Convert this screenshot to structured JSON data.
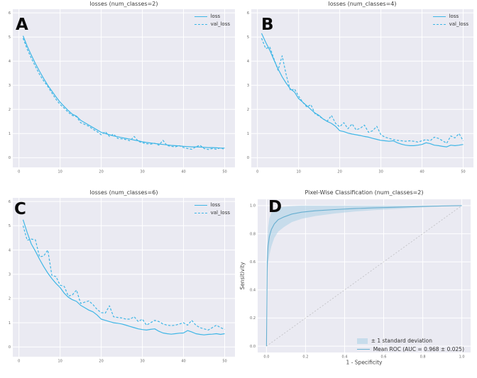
{
  "style": {
    "figure_background": "#ffffff",
    "axes_background": "#eaeaf2",
    "grid_color": "#ffffff",
    "tick_color": "#666666",
    "title_color": "#3a3a3a",
    "loss_line_color": "#3fb6e6",
    "roc_line_color": "#66aed0",
    "roc_band_color": "#a9d0e6",
    "chance_line_color": "#999999"
  },
  "chart_data": [
    {
      "type": "line",
      "panel_label": "A",
      "title": "losses (num_classes=2)",
      "xlim": [
        -1.5,
        52.5
      ],
      "ylim": [
        -0.4,
        6.15
      ],
      "xticks": [
        0,
        10,
        20,
        30,
        40,
        50
      ],
      "yticks": [
        0,
        1,
        2,
        3,
        4,
        5,
        6
      ],
      "grid": true,
      "legend_position": "upper right",
      "series": [
        {
          "key": "loss",
          "name": "loss",
          "style": "solid",
          "color": "#3fb6e6",
          "x_start": 1,
          "values": [
            5.05,
            4.62,
            4.25,
            3.9,
            3.58,
            3.28,
            3.0,
            2.76,
            2.52,
            2.3,
            2.12,
            1.95,
            1.8,
            1.72,
            1.55,
            1.45,
            1.35,
            1.25,
            1.15,
            1.05,
            1.0,
            0.95,
            0.9,
            0.87,
            0.83,
            0.8,
            0.77,
            0.73,
            0.7,
            0.66,
            0.63,
            0.61,
            0.59,
            0.57,
            0.55,
            0.53,
            0.51,
            0.5,
            0.49,
            0.47,
            0.46,
            0.45,
            0.45,
            0.44,
            0.43,
            0.42,
            0.42,
            0.41,
            0.4,
            0.4
          ]
        },
        {
          "key": "val_loss",
          "name": "val_loss",
          "style": "dashed",
          "color": "#3fb6e6",
          "x_start": 1,
          "values": [
            4.95,
            4.5,
            4.12,
            3.78,
            3.45,
            3.18,
            2.95,
            2.68,
            2.42,
            2.2,
            2.05,
            1.88,
            1.75,
            1.7,
            1.45,
            1.38,
            1.3,
            1.18,
            1.08,
            0.95,
            1.08,
            0.88,
            0.98,
            0.8,
            0.78,
            0.75,
            0.7,
            0.88,
            0.68,
            0.62,
            0.58,
            0.56,
            0.6,
            0.52,
            0.72,
            0.5,
            0.47,
            0.45,
            0.5,
            0.42,
            0.38,
            0.35,
            0.45,
            0.52,
            0.38,
            0.34,
            0.38,
            0.35,
            0.42,
            0.33
          ]
        }
      ]
    },
    {
      "type": "line",
      "panel_label": "B",
      "title": "losses (num_classes=4)",
      "xlim": [
        -1.5,
        52.5
      ],
      "ylim": [
        -0.4,
        6.15
      ],
      "xticks": [
        0,
        10,
        20,
        30,
        40,
        50
      ],
      "yticks": [
        0,
        1,
        2,
        3,
        4,
        5,
        6
      ],
      "grid": true,
      "legend_position": "upper right",
      "series": [
        {
          "key": "loss",
          "name": "loss",
          "style": "solid",
          "color": "#3fb6e6",
          "x_start": 1,
          "values": [
            5.15,
            4.78,
            4.45,
            4.05,
            3.68,
            3.35,
            3.08,
            2.85,
            2.72,
            2.45,
            2.3,
            2.15,
            2.0,
            1.85,
            1.75,
            1.6,
            1.5,
            1.42,
            1.3,
            1.12,
            1.08,
            1.02,
            0.98,
            0.95,
            0.92,
            0.88,
            0.85,
            0.8,
            0.76,
            0.72,
            0.7,
            0.68,
            0.7,
            0.62,
            0.56,
            0.52,
            0.5,
            0.5,
            0.52,
            0.55,
            0.62,
            0.58,
            0.52,
            0.5,
            0.47,
            0.45,
            0.52,
            0.5,
            0.52,
            0.55
          ]
        },
        {
          "key": "val_loss",
          "name": "val_loss",
          "style": "dashed",
          "color": "#3fb6e6",
          "x_start": 1,
          "values": [
            4.95,
            4.52,
            4.58,
            4.1,
            3.62,
            4.22,
            3.42,
            2.78,
            2.85,
            2.55,
            2.3,
            2.1,
            2.2,
            1.82,
            1.72,
            1.6,
            1.52,
            1.75,
            1.42,
            1.28,
            1.45,
            1.2,
            1.4,
            1.15,
            1.22,
            1.35,
            1.05,
            1.12,
            1.3,
            0.95,
            0.85,
            0.8,
            0.75,
            0.72,
            0.7,
            0.68,
            0.7,
            0.68,
            0.65,
            0.7,
            0.75,
            0.7,
            0.85,
            0.8,
            0.7,
            0.6,
            0.9,
            0.82,
            1.0,
            0.7
          ]
        }
      ]
    },
    {
      "type": "line",
      "panel_label": "C",
      "title": "losses (num_classes=6)",
      "xlim": [
        -1.5,
        52.5
      ],
      "ylim": [
        -0.4,
        6.15
      ],
      "xticks": [
        0,
        10,
        20,
        30,
        40,
        50
      ],
      "yticks": [
        0,
        1,
        2,
        3,
        4,
        5,
        6
      ],
      "grid": true,
      "legend_position": "upper right",
      "series": [
        {
          "key": "loss",
          "name": "loss",
          "style": "solid",
          "color": "#3fb6e6",
          "x_start": 1,
          "values": [
            5.25,
            4.72,
            4.25,
            3.95,
            3.62,
            3.32,
            3.05,
            2.82,
            2.62,
            2.45,
            2.22,
            2.05,
            1.95,
            1.88,
            1.72,
            1.62,
            1.52,
            1.45,
            1.32,
            1.15,
            1.1,
            1.05,
            1.0,
            0.98,
            0.95,
            0.9,
            0.85,
            0.8,
            0.75,
            0.72,
            0.7,
            0.73,
            0.75,
            0.65,
            0.58,
            0.55,
            0.53,
            0.55,
            0.57,
            0.58,
            0.68,
            0.62,
            0.55,
            0.52,
            0.5,
            0.52,
            0.53,
            0.55,
            0.52,
            0.55
          ]
        },
        {
          "key": "val_loss",
          "name": "val_loss",
          "style": "dashed",
          "color": "#3fb6e6",
          "x_start": 1,
          "values": [
            5.0,
            4.4,
            4.45,
            4.42,
            3.72,
            3.75,
            4.0,
            2.95,
            2.9,
            2.55,
            2.5,
            2.1,
            2.15,
            2.35,
            1.8,
            1.85,
            1.9,
            1.75,
            1.55,
            1.42,
            1.4,
            1.7,
            1.25,
            1.22,
            1.2,
            1.15,
            1.15,
            1.25,
            1.05,
            1.15,
            0.9,
            1.0,
            1.1,
            1.05,
            0.95,
            0.9,
            0.88,
            0.9,
            0.95,
            1.0,
            0.9,
            1.1,
            0.9,
            0.8,
            0.75,
            0.7,
            0.8,
            0.9,
            0.8,
            0.73
          ]
        }
      ]
    },
    {
      "type": "line",
      "panel_label": "D",
      "title": "Pixel-Wise Classification (num_classes=2)",
      "xlabel": "1 - Specificity",
      "ylabel": "Sensitivity",
      "xlim": [
        -0.045,
        1.045
      ],
      "ylim": [
        -0.045,
        1.045
      ],
      "xticks": [
        0,
        0.2,
        0.4,
        0.6,
        0.8,
        1.0
      ],
      "yticks": [
        0,
        0.2,
        0.4,
        0.6,
        0.8,
        1.0
      ],
      "xtick_labels": [
        "0.0",
        "0.2",
        "0.4",
        "0.6",
        "0.8",
        "1.0"
      ],
      "ytick_labels": [
        "0.0",
        "0.2",
        "0.4",
        "0.6",
        "0.8",
        "1.0"
      ],
      "grid": true,
      "legend_position": "lower right",
      "auc_text": "0.968 ± 0.025",
      "series": [
        {
          "key": "std_band",
          "name": "± 1 standard deviation",
          "style": "band",
          "color": "#a9d0e6",
          "x": [
            0,
            0.004,
            0.008,
            0.015,
            0.025,
            0.04,
            0.06,
            0.09,
            0.13,
            0.18,
            0.25,
            0.35,
            0.45,
            0.55,
            0.65,
            0.75,
            0.85,
            1.0
          ],
          "upper": [
            0,
            0.72,
            0.84,
            0.91,
            0.95,
            0.97,
            0.985,
            0.992,
            0.997,
            1,
            1,
            1,
            1,
            1,
            1,
            1,
            1,
            1
          ],
          "lower": [
            0,
            0.48,
            0.58,
            0.65,
            0.71,
            0.77,
            0.815,
            0.848,
            0.883,
            0.906,
            0.926,
            0.944,
            0.958,
            0.968,
            0.976,
            0.984,
            0.992,
            1.0
          ]
        },
        {
          "key": "chance",
          "name": "chance-diagonal",
          "style": "chance",
          "color": "#999999",
          "legend": false,
          "x": [
            0,
            1
          ],
          "y": [
            0,
            1
          ]
        },
        {
          "key": "mean_roc",
          "name": "Mean ROC (AUC = 0.968 ± 0.025)",
          "style": "solid",
          "color": "#66aed0",
          "width": 1.1,
          "x": [
            0,
            0.004,
            0.008,
            0.015,
            0.025,
            0.04,
            0.06,
            0.09,
            0.13,
            0.18,
            0.25,
            0.35,
            0.45,
            0.55,
            0.65,
            0.75,
            0.85,
            1.0
          ],
          "y": [
            0,
            0.6,
            0.71,
            0.78,
            0.83,
            0.87,
            0.9,
            0.92,
            0.94,
            0.953,
            0.963,
            0.972,
            0.979,
            0.984,
            0.988,
            0.992,
            0.996,
            1.0
          ]
        }
      ]
    }
  ]
}
